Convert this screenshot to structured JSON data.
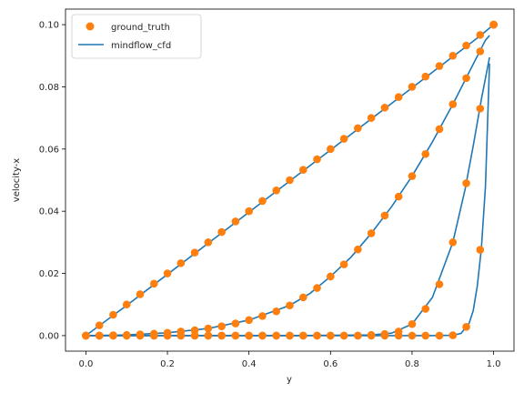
{
  "chart_data": {
    "type": "line",
    "xlabel": "y",
    "ylabel": "velocity-x",
    "xlim": [
      -0.05,
      1.05
    ],
    "ylim": [
      -0.005,
      0.105
    ],
    "x_ticks": [
      0.0,
      0.2,
      0.4,
      0.6,
      0.8,
      1.0
    ],
    "x_tick_labels": [
      "0.0",
      "0.2",
      "0.4",
      "0.6",
      "0.8",
      "1.0"
    ],
    "y_ticks": [
      0.0,
      0.02,
      0.04,
      0.06,
      0.08,
      0.1
    ],
    "y_tick_labels": [
      "0.00",
      "0.02",
      "0.04",
      "0.06",
      "0.08",
      "0.10"
    ],
    "grid": false,
    "legend": {
      "placement": "top-left",
      "entries": [
        {
          "label": "ground_truth",
          "marker": "circle",
          "color": "#ff7f0e"
        },
        {
          "label": "mindflow_cfd",
          "marker": "line",
          "color": "#1f77b4"
        }
      ]
    },
    "series": [
      {
        "name": "ground_truth",
        "color": "#ff7f0e",
        "style": "markers",
        "profiles": [
          {
            "x": [
              0.0,
              0.033,
              0.067,
              0.1,
              0.133,
              0.167,
              0.2,
              0.233,
              0.267,
              0.3,
              0.333,
              0.367,
              0.4,
              0.433,
              0.467,
              0.5,
              0.533,
              0.567,
              0.6,
              0.633,
              0.667,
              0.7,
              0.733,
              0.767,
              0.8,
              0.833,
              0.867,
              0.9,
              0.933,
              0.967,
              1.0
            ],
            "y": [
              0.0,
              0.0033,
              0.0067,
              0.01,
              0.0133,
              0.0167,
              0.02,
              0.0233,
              0.0267,
              0.03,
              0.0333,
              0.0367,
              0.04,
              0.0433,
              0.0467,
              0.05,
              0.0533,
              0.0567,
              0.06,
              0.0633,
              0.0667,
              0.07,
              0.0733,
              0.0767,
              0.08,
              0.0833,
              0.0867,
              0.09,
              0.0933,
              0.0967,
              0.1
            ]
          },
          {
            "x": [
              0.0,
              0.033,
              0.067,
              0.1,
              0.133,
              0.167,
              0.2,
              0.233,
              0.267,
              0.3,
              0.333,
              0.367,
              0.4,
              0.433,
              0.467,
              0.5,
              0.533,
              0.567,
              0.6,
              0.633,
              0.667,
              0.7,
              0.733,
              0.767,
              0.8,
              0.833,
              0.867,
              0.9,
              0.933,
              0.967,
              1.0
            ],
            "y": [
              0.0,
              0.0,
              0.0001,
              0.0002,
              0.0004,
              0.0006,
              0.0009,
              0.0013,
              0.0017,
              0.0023,
              0.003,
              0.0039,
              0.005,
              0.0063,
              0.0078,
              0.0097,
              0.0123,
              0.0153,
              0.019,
              0.0229,
              0.0277,
              0.0329,
              0.0386,
              0.0447,
              0.0513,
              0.0584,
              0.0664,
              0.0744,
              0.0828,
              0.0914,
              0.1
            ]
          },
          {
            "x": [
              0.0,
              0.033,
              0.067,
              0.1,
              0.133,
              0.167,
              0.2,
              0.233,
              0.267,
              0.3,
              0.333,
              0.367,
              0.4,
              0.433,
              0.467,
              0.5,
              0.533,
              0.567,
              0.6,
              0.633,
              0.667,
              0.7,
              0.733,
              0.767,
              0.8,
              0.833,
              0.867,
              0.9,
              0.933,
              0.967,
              1.0
            ],
            "y": [
              0.0,
              0.0,
              0.0,
              0.0,
              0.0,
              0.0,
              0.0,
              0.0,
              0.0,
              0.0,
              0.0,
              0.0,
              0.0,
              0.0,
              0.0,
              0.0,
              0.0,
              0.0,
              0.0,
              0.0,
              0.0,
              0.0002,
              0.0005,
              0.0013,
              0.0037,
              0.0086,
              0.0165,
              0.03,
              0.049,
              0.073,
              0.1
            ]
          },
          {
            "x": [
              0.0,
              0.033,
              0.067,
              0.1,
              0.133,
              0.167,
              0.2,
              0.233,
              0.267,
              0.3,
              0.333,
              0.367,
              0.4,
              0.433,
              0.467,
              0.5,
              0.533,
              0.567,
              0.6,
              0.633,
              0.667,
              0.7,
              0.733,
              0.767,
              0.8,
              0.833,
              0.867,
              0.9,
              0.933,
              0.967,
              1.0
            ],
            "y": [
              0.0,
              0.0,
              0.0,
              0.0,
              0.0,
              0.0,
              0.0,
              0.0,
              0.0,
              0.0,
              0.0,
              0.0,
              0.0,
              0.0,
              0.0,
              0.0,
              0.0,
              0.0,
              0.0,
              0.0,
              0.0,
              0.0,
              0.0,
              0.0,
              0.0,
              0.0,
              0.0,
              0.0001,
              0.0028,
              0.0276,
              0.1
            ]
          }
        ]
      },
      {
        "name": "mindflow_cfd",
        "color": "#1f77b4",
        "style": "line",
        "profiles": [
          {
            "x": [
              0.0,
              0.1,
              0.2,
              0.3,
              0.4,
              0.5,
              0.6,
              0.7,
              0.8,
              0.9,
              0.967,
              1.0
            ],
            "y": [
              0.0,
              0.0097,
              0.0197,
              0.0297,
              0.0397,
              0.0497,
              0.0597,
              0.0697,
              0.0797,
              0.0897,
              0.0964,
              0.1
            ]
          },
          {
            "x": [
              0.0,
              0.1,
              0.2,
              0.3,
              0.4,
              0.5,
              0.55,
              0.6,
              0.65,
              0.7,
              0.75,
              0.8,
              0.85,
              0.9,
              0.95,
              0.98,
              0.99
            ],
            "y": [
              0.0,
              0.0002,
              0.0009,
              0.0023,
              0.005,
              0.0097,
              0.0136,
              0.019,
              0.0252,
              0.0329,
              0.0415,
              0.0513,
              0.0623,
              0.0744,
              0.0873,
              0.095,
              0.0965
            ]
          },
          {
            "x": [
              0.0,
              0.5,
              0.7,
              0.75,
              0.8,
              0.85,
              0.9,
              0.93,
              0.95,
              0.97,
              0.99
            ],
            "y": [
              0.0,
              0.0,
              0.0002,
              0.0008,
              0.0037,
              0.0123,
              0.03,
              0.047,
              0.061,
              0.076,
              0.0895
            ]
          },
          {
            "x": [
              0.0,
              0.5,
              0.85,
              0.9,
              0.92,
              0.94,
              0.95,
              0.96,
              0.97,
              0.98,
              0.99
            ],
            "y": [
              0.0,
              0.0,
              0.0,
              0.0001,
              0.0007,
              0.004,
              0.008,
              0.016,
              0.028,
              0.048,
              0.0875
            ]
          }
        ]
      }
    ]
  }
}
